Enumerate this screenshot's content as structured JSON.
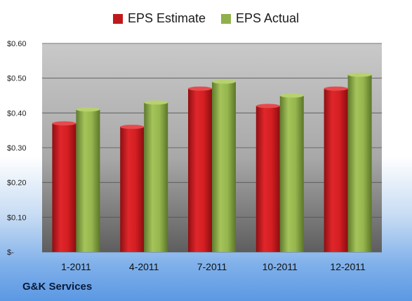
{
  "company_label": "G&K Services",
  "chart_data": {
    "type": "bar",
    "categories": [
      "1-2011",
      "4-2011",
      "7-2011",
      "10-2011",
      "12-2011"
    ],
    "series": [
      {
        "name": "EPS Estimate",
        "values": [
          0.37,
          0.36,
          0.47,
          0.42,
          0.47
        ],
        "color": "#c0191c"
      },
      {
        "name": "EPS Actual",
        "values": [
          0.41,
          0.43,
          0.49,
          0.45,
          0.51
        ],
        "color": "#8fb04a"
      }
    ],
    "yticks": [
      0,
      0.1,
      0.2,
      0.3,
      0.4,
      0.5,
      0.6
    ],
    "ytick_labels": [
      "$-",
      "$0.10",
      "$0.20",
      "$0.30",
      "$0.40",
      "$0.50",
      "$0.60"
    ],
    "ylim": [
      0,
      0.6
    ],
    "grid": true,
    "legend_position": "top"
  }
}
